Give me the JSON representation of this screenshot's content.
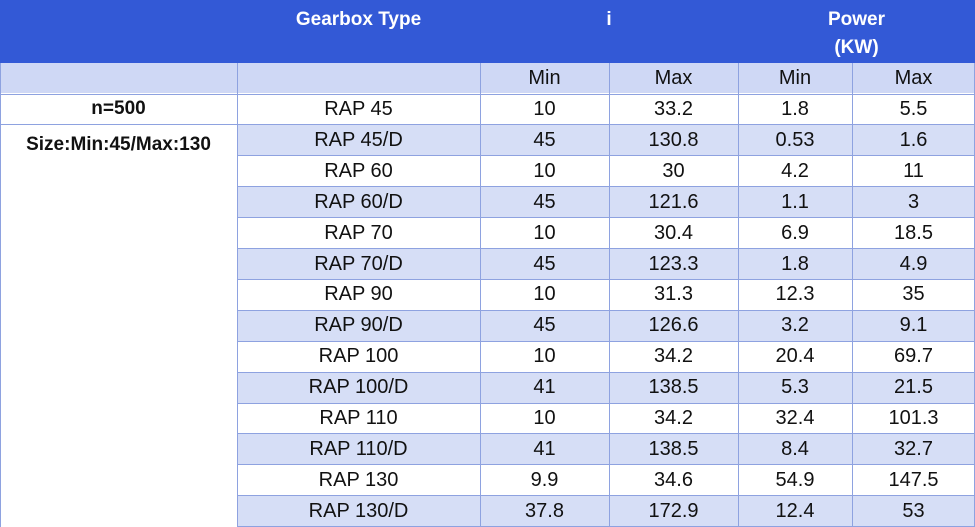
{
  "header": {
    "gearbox_type": "Gearbox Type",
    "i": "i",
    "power_line1": "Power",
    "power_line2": "(KW)"
  },
  "subheader": [
    "",
    "",
    "Min",
    "Max",
    "Min",
    "Max"
  ],
  "left_labels": {
    "speed": "n=500",
    "size": "Size:Min:45/Max:130"
  },
  "rows": [
    {
      "type": "RAP 45",
      "i_min": "10",
      "i_max": "33.2",
      "p_min": "1.8",
      "p_max": "5.5"
    },
    {
      "type": "RAP 45/D",
      "i_min": "45",
      "i_max": "130.8",
      "p_min": "0.53",
      "p_max": "1.6"
    },
    {
      "type": "RAP 60",
      "i_min": "10",
      "i_max": "30",
      "p_min": "4.2",
      "p_max": "11"
    },
    {
      "type": "RAP 60/D",
      "i_min": "45",
      "i_max": "121.6",
      "p_min": "1.1",
      "p_max": "3"
    },
    {
      "type": "RAP 70",
      "i_min": "10",
      "i_max": "30.4",
      "p_min": "6.9",
      "p_max": "18.5"
    },
    {
      "type": "RAP 70/D",
      "i_min": "45",
      "i_max": "123.3",
      "p_min": "1.8",
      "p_max": "4.9"
    },
    {
      "type": "RAP 90",
      "i_min": "10",
      "i_max": "31.3",
      "p_min": "12.3",
      "p_max": "35"
    },
    {
      "type": "RAP 90/D",
      "i_min": "45",
      "i_max": "126.6",
      "p_min": "3.2",
      "p_max": "9.1"
    },
    {
      "type": "RAP 100",
      "i_min": "10",
      "i_max": "34.2",
      "p_min": "20.4",
      "p_max": "69.7"
    },
    {
      "type": "RAP 100/D",
      "i_min": "41",
      "i_max": "138.5",
      "p_min": "5.3",
      "p_max": "21.5"
    },
    {
      "type": "RAP 110",
      "i_min": "10",
      "i_max": "34.2",
      "p_min": "32.4",
      "p_max": "101.3"
    },
    {
      "type": "RAP 110/D",
      "i_min": "41",
      "i_max": "138.5",
      "p_min": "8.4",
      "p_max": "32.7"
    },
    {
      "type": "RAP 130",
      "i_min": "9.9",
      "i_max": "34.6",
      "p_min": "54.9",
      "p_max": "147.5"
    },
    {
      "type": "RAP 130/D",
      "i_min": "37.8",
      "i_max": "172.9",
      "p_min": "12.4",
      "p_max": "53"
    }
  ],
  "colors": {
    "header_bg": "#3359d6",
    "subheader_bg": "#cfd8f5",
    "row_alt_bg": "#d6def6",
    "row_bg": "#ffffff",
    "grid": "#8ea2e0"
  }
}
